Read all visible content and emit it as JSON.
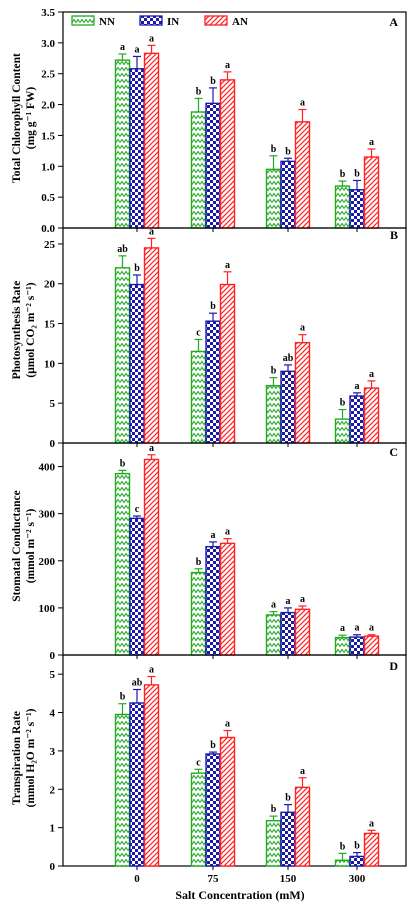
{
  "chart_data": [
    {
      "type": "bar",
      "panel": "A",
      "ylabel": "Total Chlorophyll Content",
      "yunit": "(mg g⁻¹ FW)",
      "ylim": [
        0,
        3.5
      ],
      "yticks": [
        "0.0",
        "0.5",
        "1.0",
        "1.5",
        "2.0",
        "2.5",
        "3.0",
        "3.5"
      ],
      "categories": [
        "0",
        "75",
        "150",
        "300"
      ],
      "series": [
        {
          "name": "NN",
          "values": [
            2.72,
            1.88,
            0.95,
            0.68
          ],
          "errors": [
            0.1,
            0.22,
            0.22,
            0.08
          ],
          "letters": [
            "a",
            "b",
            "b",
            "b"
          ]
        },
        {
          "name": "IN",
          "values": [
            2.58,
            2.02,
            1.08,
            0.62
          ],
          "errors": [
            0.2,
            0.25,
            0.05,
            0.15
          ],
          "letters": [
            "a",
            "b",
            "b",
            "b"
          ]
        },
        {
          "name": "AN",
          "values": [
            2.83,
            2.4,
            1.72,
            1.15
          ],
          "errors": [
            0.13,
            0.13,
            0.2,
            0.13
          ],
          "letters": [
            "a",
            "a",
            "a",
            "a"
          ]
        }
      ]
    },
    {
      "type": "bar",
      "panel": "B",
      "ylabel": "Photosynthesis Rate",
      "yunit": "(μmol CO₂ m⁻² s⁻¹)",
      "ylim": [
        0,
        27
      ],
      "yticks": [
        "0",
        "5",
        "10",
        "15",
        "20",
        "25"
      ],
      "categories": [
        "0",
        "75",
        "150",
        "300"
      ],
      "series": [
        {
          "name": "NN",
          "values": [
            22.0,
            11.5,
            7.2,
            3.0
          ],
          "errors": [
            1.5,
            1.5,
            1.0,
            1.2
          ],
          "letters": [
            "ab",
            "c",
            "b",
            "b"
          ]
        },
        {
          "name": "IN",
          "values": [
            19.9,
            15.3,
            9.0,
            5.9
          ],
          "errors": [
            1.2,
            1.0,
            0.8,
            0.4
          ],
          "letters": [
            "b",
            "b",
            "ab",
            "a"
          ]
        },
        {
          "name": "AN",
          "values": [
            24.5,
            19.9,
            12.6,
            6.9
          ],
          "errors": [
            1.2,
            1.6,
            1.0,
            0.9
          ],
          "letters": [
            "a",
            "a",
            "a",
            "a"
          ]
        }
      ]
    },
    {
      "type": "bar",
      "panel": "C",
      "ylabel": "Stomatal Conductance",
      "yunit": "(mmol m⁻² s⁻¹)",
      "ylim": [
        0,
        450
      ],
      "yticks": [
        "0",
        "100",
        "200",
        "300",
        "400"
      ],
      "categories": [
        "0",
        "75",
        "150",
        "300"
      ],
      "series": [
        {
          "name": "NN",
          "values": [
            385,
            175,
            85,
            37
          ],
          "errors": [
            7,
            8,
            7,
            5
          ],
          "letters": [
            "b",
            "b",
            "a",
            "a"
          ]
        },
        {
          "name": "IN",
          "values": [
            290,
            230,
            90,
            38
          ],
          "errors": [
            5,
            10,
            10,
            5
          ],
          "letters": [
            "c",
            "a",
            "a",
            "a"
          ]
        },
        {
          "name": "AN",
          "values": [
            415,
            237,
            97,
            40
          ],
          "errors": [
            10,
            10,
            7,
            3
          ],
          "letters": [
            "a",
            "a",
            "a",
            "a"
          ]
        }
      ]
    },
    {
      "type": "bar",
      "panel": "D",
      "ylabel": "Transpiration Rate",
      "yunit": "(mmol H₂O m⁻² s⁻¹)",
      "ylim": [
        0,
        5.5
      ],
      "yticks": [
        "0",
        "1",
        "2",
        "3",
        "4",
        "5"
      ],
      "categories": [
        "0",
        "75",
        "150",
        "300"
      ],
      "series": [
        {
          "name": "NN",
          "values": [
            3.95,
            2.42,
            1.18,
            0.15
          ],
          "errors": [
            0.28,
            0.1,
            0.12,
            0.18
          ],
          "letters": [
            "b",
            "c",
            "b",
            "b"
          ]
        },
        {
          "name": "IN",
          "values": [
            4.25,
            2.92,
            1.4,
            0.25
          ],
          "errors": [
            0.35,
            0.05,
            0.2,
            0.1
          ],
          "letters": [
            "ab",
            "b",
            "b",
            "b"
          ]
        },
        {
          "name": "AN",
          "values": [
            4.72,
            3.35,
            2.05,
            0.85
          ],
          "errors": [
            0.22,
            0.18,
            0.25,
            0.08
          ],
          "letters": [
            "a",
            "a",
            "a",
            "a"
          ]
        }
      ]
    }
  ],
  "legend": [
    {
      "name": "NN",
      "color": "#22aa22",
      "pattern": "zigzag"
    },
    {
      "name": "IN",
      "color": "#1a1aaa",
      "pattern": "checker"
    },
    {
      "name": "AN",
      "color": "#ff2020",
      "pattern": "diagonal"
    }
  ],
  "xlabel": "Salt Concentration (mM)",
  "colors": {
    "NN": "#22aa22",
    "IN": "#1a1aaa",
    "AN": "#ff2020",
    "axis": "#000000"
  }
}
